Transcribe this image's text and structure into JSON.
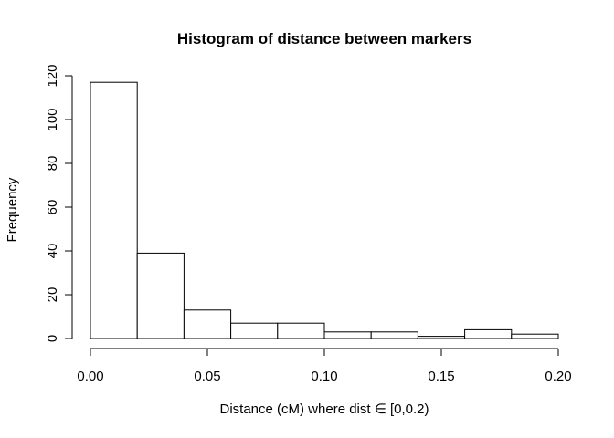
{
  "chart_data": {
    "type": "bar",
    "title": "Histogram of distance between markers",
    "xlabel": "Distance (cM) where dist ∈ [0,0.2)",
    "ylabel": "Frequency",
    "bins": [
      {
        "start": 0.0,
        "end": 0.02,
        "count": 117
      },
      {
        "start": 0.02,
        "end": 0.04,
        "count": 39
      },
      {
        "start": 0.04,
        "end": 0.06,
        "count": 13
      },
      {
        "start": 0.06,
        "end": 0.08,
        "count": 7
      },
      {
        "start": 0.08,
        "end": 0.1,
        "count": 7
      },
      {
        "start": 0.1,
        "end": 0.12,
        "count": 3
      },
      {
        "start": 0.12,
        "end": 0.14,
        "count": 3
      },
      {
        "start": 0.14,
        "end": 0.16,
        "count": 1
      },
      {
        "start": 0.16,
        "end": 0.18,
        "count": 4
      },
      {
        "start": 0.18,
        "end": 0.2,
        "count": 2
      }
    ],
    "xlim": [
      0,
      0.2
    ],
    "ylim": [
      0,
      120
    ],
    "x_ticks": [
      "0.00",
      "0.05",
      "0.10",
      "0.15",
      "0.20"
    ],
    "y_ticks": [
      "0",
      "20",
      "40",
      "60",
      "80",
      "100",
      "120"
    ],
    "grid": false,
    "bar_fill": "#ffffff",
    "bar_stroke": "#000000"
  }
}
